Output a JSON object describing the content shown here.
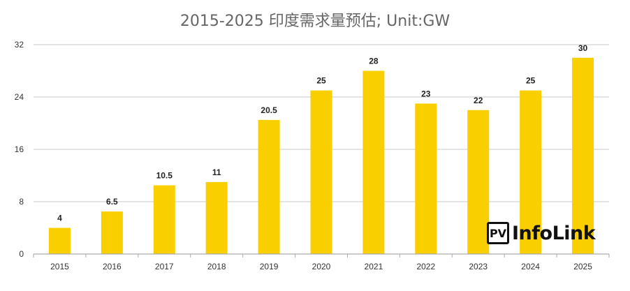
{
  "chart_data": {
    "type": "bar",
    "title": "2015-2025 印度需求量预估; Unit:GW",
    "categories": [
      "2015",
      "2016",
      "2017",
      "2018",
      "2019",
      "2020",
      "2021",
      "2022",
      "2023",
      "2024",
      "2025"
    ],
    "values": [
      4,
      6.5,
      10.5,
      11,
      20.5,
      25,
      28,
      23,
      22,
      25,
      30
    ],
    "data_labels": [
      "4",
      "6.5",
      "10.5",
      "11",
      "20.5",
      "25",
      "28",
      "23",
      "22",
      "25",
      "30"
    ],
    "xlabel": "",
    "ylabel": "",
    "ylim": [
      0,
      32
    ],
    "yticks": [
      0,
      8,
      16,
      24,
      32
    ],
    "grid": true,
    "bar_color": "#F9CF00"
  },
  "logo": {
    "pv": "PV",
    "name": "InfoLink"
  }
}
